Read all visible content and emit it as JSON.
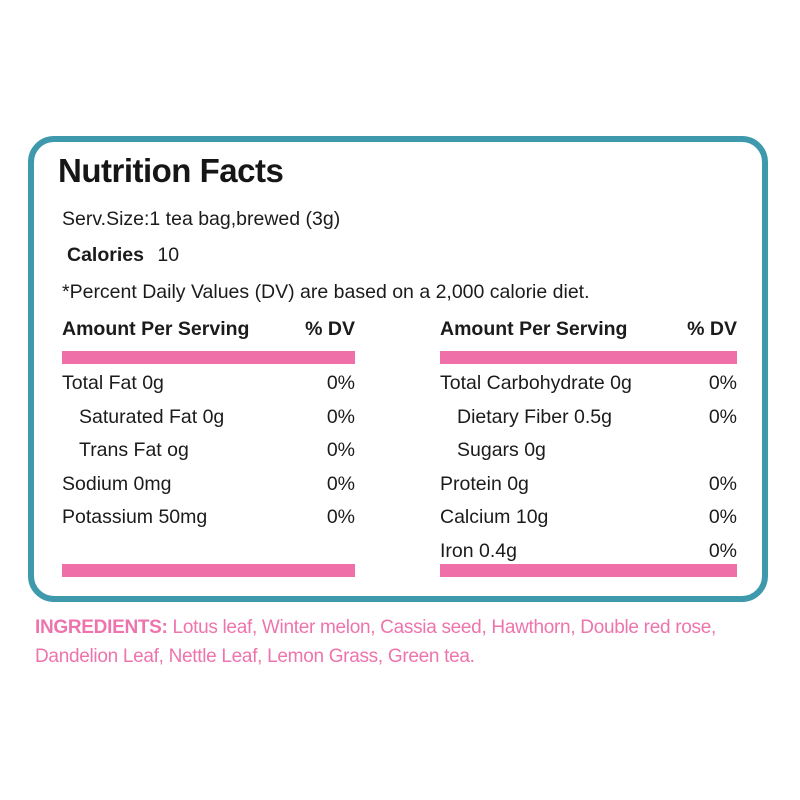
{
  "label": {
    "title": "Nutrition Facts",
    "serving": "Serv.Size:1 tea bag,brewed (3g)",
    "calories_label": "Calories",
    "calories_value": "10",
    "dv_note": "*Percent Daily Values (DV) are based on a 2,000 calorie diet."
  },
  "columns": [
    {
      "header": "Amount Per Serving",
      "dv_header": "% DV",
      "rows": [
        {
          "name": "Total Fat 0g",
          "dv": "0%"
        },
        {
          "name": "Saturated Fat 0g",
          "dv": "0%"
        },
        {
          "name": "Trans Fat og",
          "dv": "0%"
        },
        {
          "name": "Sodium 0mg",
          "dv": "0%"
        },
        {
          "name": "Potassium 50mg",
          "dv": "0%"
        }
      ]
    },
    {
      "header": "Amount Per Serving",
      "dv_header": "% DV",
      "rows": [
        {
          "name": "Total Carbohydrate 0g",
          "dv": "0%"
        },
        {
          "name": "Dietary Fiber 0.5g",
          "dv": "0%"
        },
        {
          "name": "Sugars 0g",
          "dv": ""
        },
        {
          "name": "Protein 0g",
          "dv": "0%"
        },
        {
          "name": "Calcium 10g",
          "dv": "0%"
        },
        {
          "name": "Iron 0.4g",
          "dv": "0%"
        }
      ]
    }
  ],
  "ingredients": {
    "label": "INGREDIENTS:",
    "text": " Lotus leaf, Winter melon, Cassia seed, Hawthorn, Double red rose, Dandelion Leaf, Nettle Leaf, Lemon Grass, Green tea."
  },
  "colors": {
    "border_teal": "#3d99ab",
    "bar_pink": "#ef6fa8",
    "ingredients_pink": "#ee74ad",
    "text": "#1b1b1b"
  }
}
